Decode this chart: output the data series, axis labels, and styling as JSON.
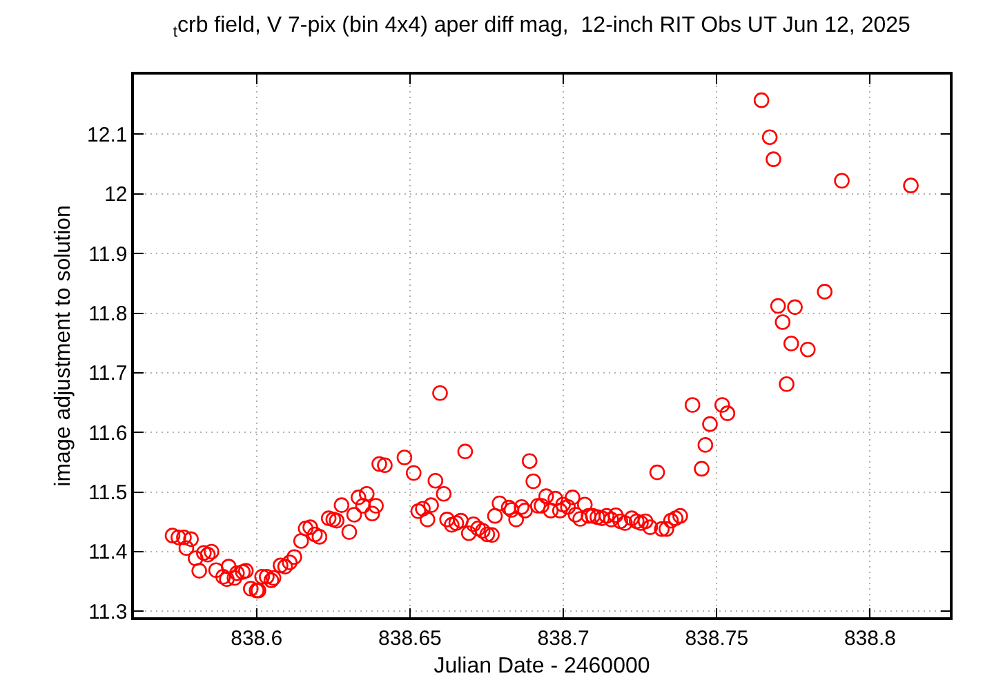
{
  "chart_data": {
    "type": "scatter",
    "title": "$_{t}$crb field, V 7-pix (bin 4x4) aper diff mag,  12-inch RIT Obs UT Jun 12, 2025",
    "xlabel": "Julian Date - 2460000",
    "ylabel": "image adjustment to solution",
    "xlim": [
      838.56,
      838.826
    ],
    "ylim": [
      11.29,
      12.2
    ],
    "xticks": [
      838.6,
      838.65,
      838.7,
      838.75,
      838.8
    ],
    "yticks": [
      11.3,
      11.4,
      11.5,
      11.6,
      11.7,
      11.8,
      11.9,
      12,
      12.1
    ],
    "grid": true,
    "marker": "circle",
    "series": [
      {
        "color": "#ff0000",
        "x": [
          838.5726,
          838.5745,
          838.5763,
          838.5786,
          838.5771,
          838.5801,
          838.5813,
          838.5828,
          838.5841,
          838.5853,
          838.5868,
          838.5891,
          838.5903,
          838.5909,
          838.5928,
          838.5936,
          838.5955,
          838.5965,
          838.5981,
          838.6,
          838.6006,
          838.6018,
          838.6033,
          838.6048,
          838.6055,
          838.6078,
          838.6093,
          838.6108,
          838.6123,
          838.6145,
          838.616,
          838.6175,
          838.619,
          838.6205,
          838.6235,
          838.625,
          838.6261,
          838.6277,
          838.6302,
          838.6318,
          838.6332,
          838.6347,
          838.6359,
          838.6377,
          838.6389,
          838.64,
          838.6418,
          838.6482,
          838.6512,
          838.6598,
          838.6583,
          838.661,
          838.6527,
          838.6542,
          838.6557,
          838.6569,
          838.6621,
          838.6636,
          838.6651,
          838.6666,
          838.668,
          838.6692,
          838.6707,
          838.6722,
          838.6737,
          838.6752,
          838.6767,
          838.6777,
          838.6792,
          838.6822,
          838.6831,
          838.6846,
          838.6864,
          838.6875,
          838.689,
          838.6902,
          838.6917,
          838.6929,
          838.6944,
          838.6959,
          838.6974,
          838.6989,
          838.6999,
          838.7015,
          838.703,
          838.704,
          838.7055,
          838.707,
          838.7082,
          838.7096,
          838.7111,
          838.7126,
          838.7141,
          838.7156,
          838.7171,
          838.7186,
          838.7201,
          838.7223,
          838.7239,
          838.7253,
          838.7268,
          838.7283,
          838.7306,
          838.7321,
          838.7336,
          838.7351,
          838.7366,
          838.7381,
          838.7421,
          838.7451,
          838.7463,
          838.7478,
          838.7518,
          838.7535,
          838.7646,
          838.7673,
          838.7685,
          838.77,
          838.7715,
          838.7728,
          838.7743,
          838.7755,
          838.7797,
          838.7852,
          838.7908,
          838.8133
        ],
        "values": [
          11.427,
          11.424,
          11.424,
          11.421,
          11.406,
          11.389,
          11.368,
          11.398,
          11.395,
          11.4,
          11.369,
          11.358,
          11.354,
          11.375,
          11.356,
          11.364,
          11.366,
          11.368,
          11.338,
          11.335,
          11.335,
          11.358,
          11.358,
          11.352,
          11.356,
          11.377,
          11.375,
          11.382,
          11.391,
          11.418,
          11.439,
          11.441,
          11.429,
          11.425,
          11.456,
          11.454,
          11.452,
          11.478,
          11.433,
          11.462,
          11.491,
          11.477,
          11.497,
          11.464,
          11.477,
          11.547,
          11.545,
          11.558,
          11.532,
          11.666,
          11.519,
          11.497,
          11.468,
          11.472,
          11.454,
          11.478,
          11.454,
          11.445,
          11.448,
          11.452,
          11.568,
          11.431,
          11.446,
          11.439,
          11.435,
          11.429,
          11.428,
          11.46,
          11.481,
          11.474,
          11.47,
          11.454,
          11.475,
          11.469,
          11.552,
          11.518,
          11.477,
          11.477,
          11.493,
          11.469,
          11.489,
          11.469,
          11.479,
          11.475,
          11.491,
          11.462,
          11.455,
          11.479,
          11.46,
          11.46,
          11.458,
          11.456,
          11.46,
          11.454,
          11.461,
          11.451,
          11.448,
          11.456,
          11.451,
          11.448,
          11.451,
          11.441,
          11.533,
          11.438,
          11.438,
          11.452,
          11.456,
          11.46,
          11.646,
          11.539,
          11.579,
          11.614,
          11.646,
          11.632,
          12.157,
          12.095,
          12.058,
          11.812,
          11.785,
          11.681,
          11.749,
          11.81,
          11.739,
          11.836,
          12.022,
          12.014
        ]
      }
    ]
  }
}
